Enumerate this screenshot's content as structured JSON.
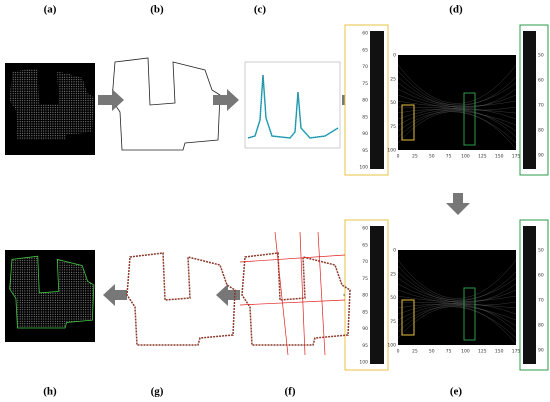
{
  "panels": [
    {
      "label": "(a)"
    },
    {
      "label": "(b)"
    },
    {
      "label": "(c)"
    },
    {
      "label": "(d)"
    },
    {
      "label": "(e)"
    },
    {
      "label": "(f)"
    },
    {
      "label": "(g)"
    },
    {
      "label": "(h)"
    }
  ],
  "hough_x_ticks": [
    "0",
    "25",
    "50",
    "75",
    "100",
    "125",
    "150",
    "175"
  ],
  "hough_y_ticks": [
    "0",
    "25",
    "50",
    "75",
    "100"
  ],
  "left_strip_ticks": [
    "60",
    "65",
    "70",
    "75",
    "80",
    "85",
    "90",
    "95",
    "100"
  ],
  "right_strip_ticks": [
    "50",
    "60",
    "70",
    "80",
    "90"
  ]
}
